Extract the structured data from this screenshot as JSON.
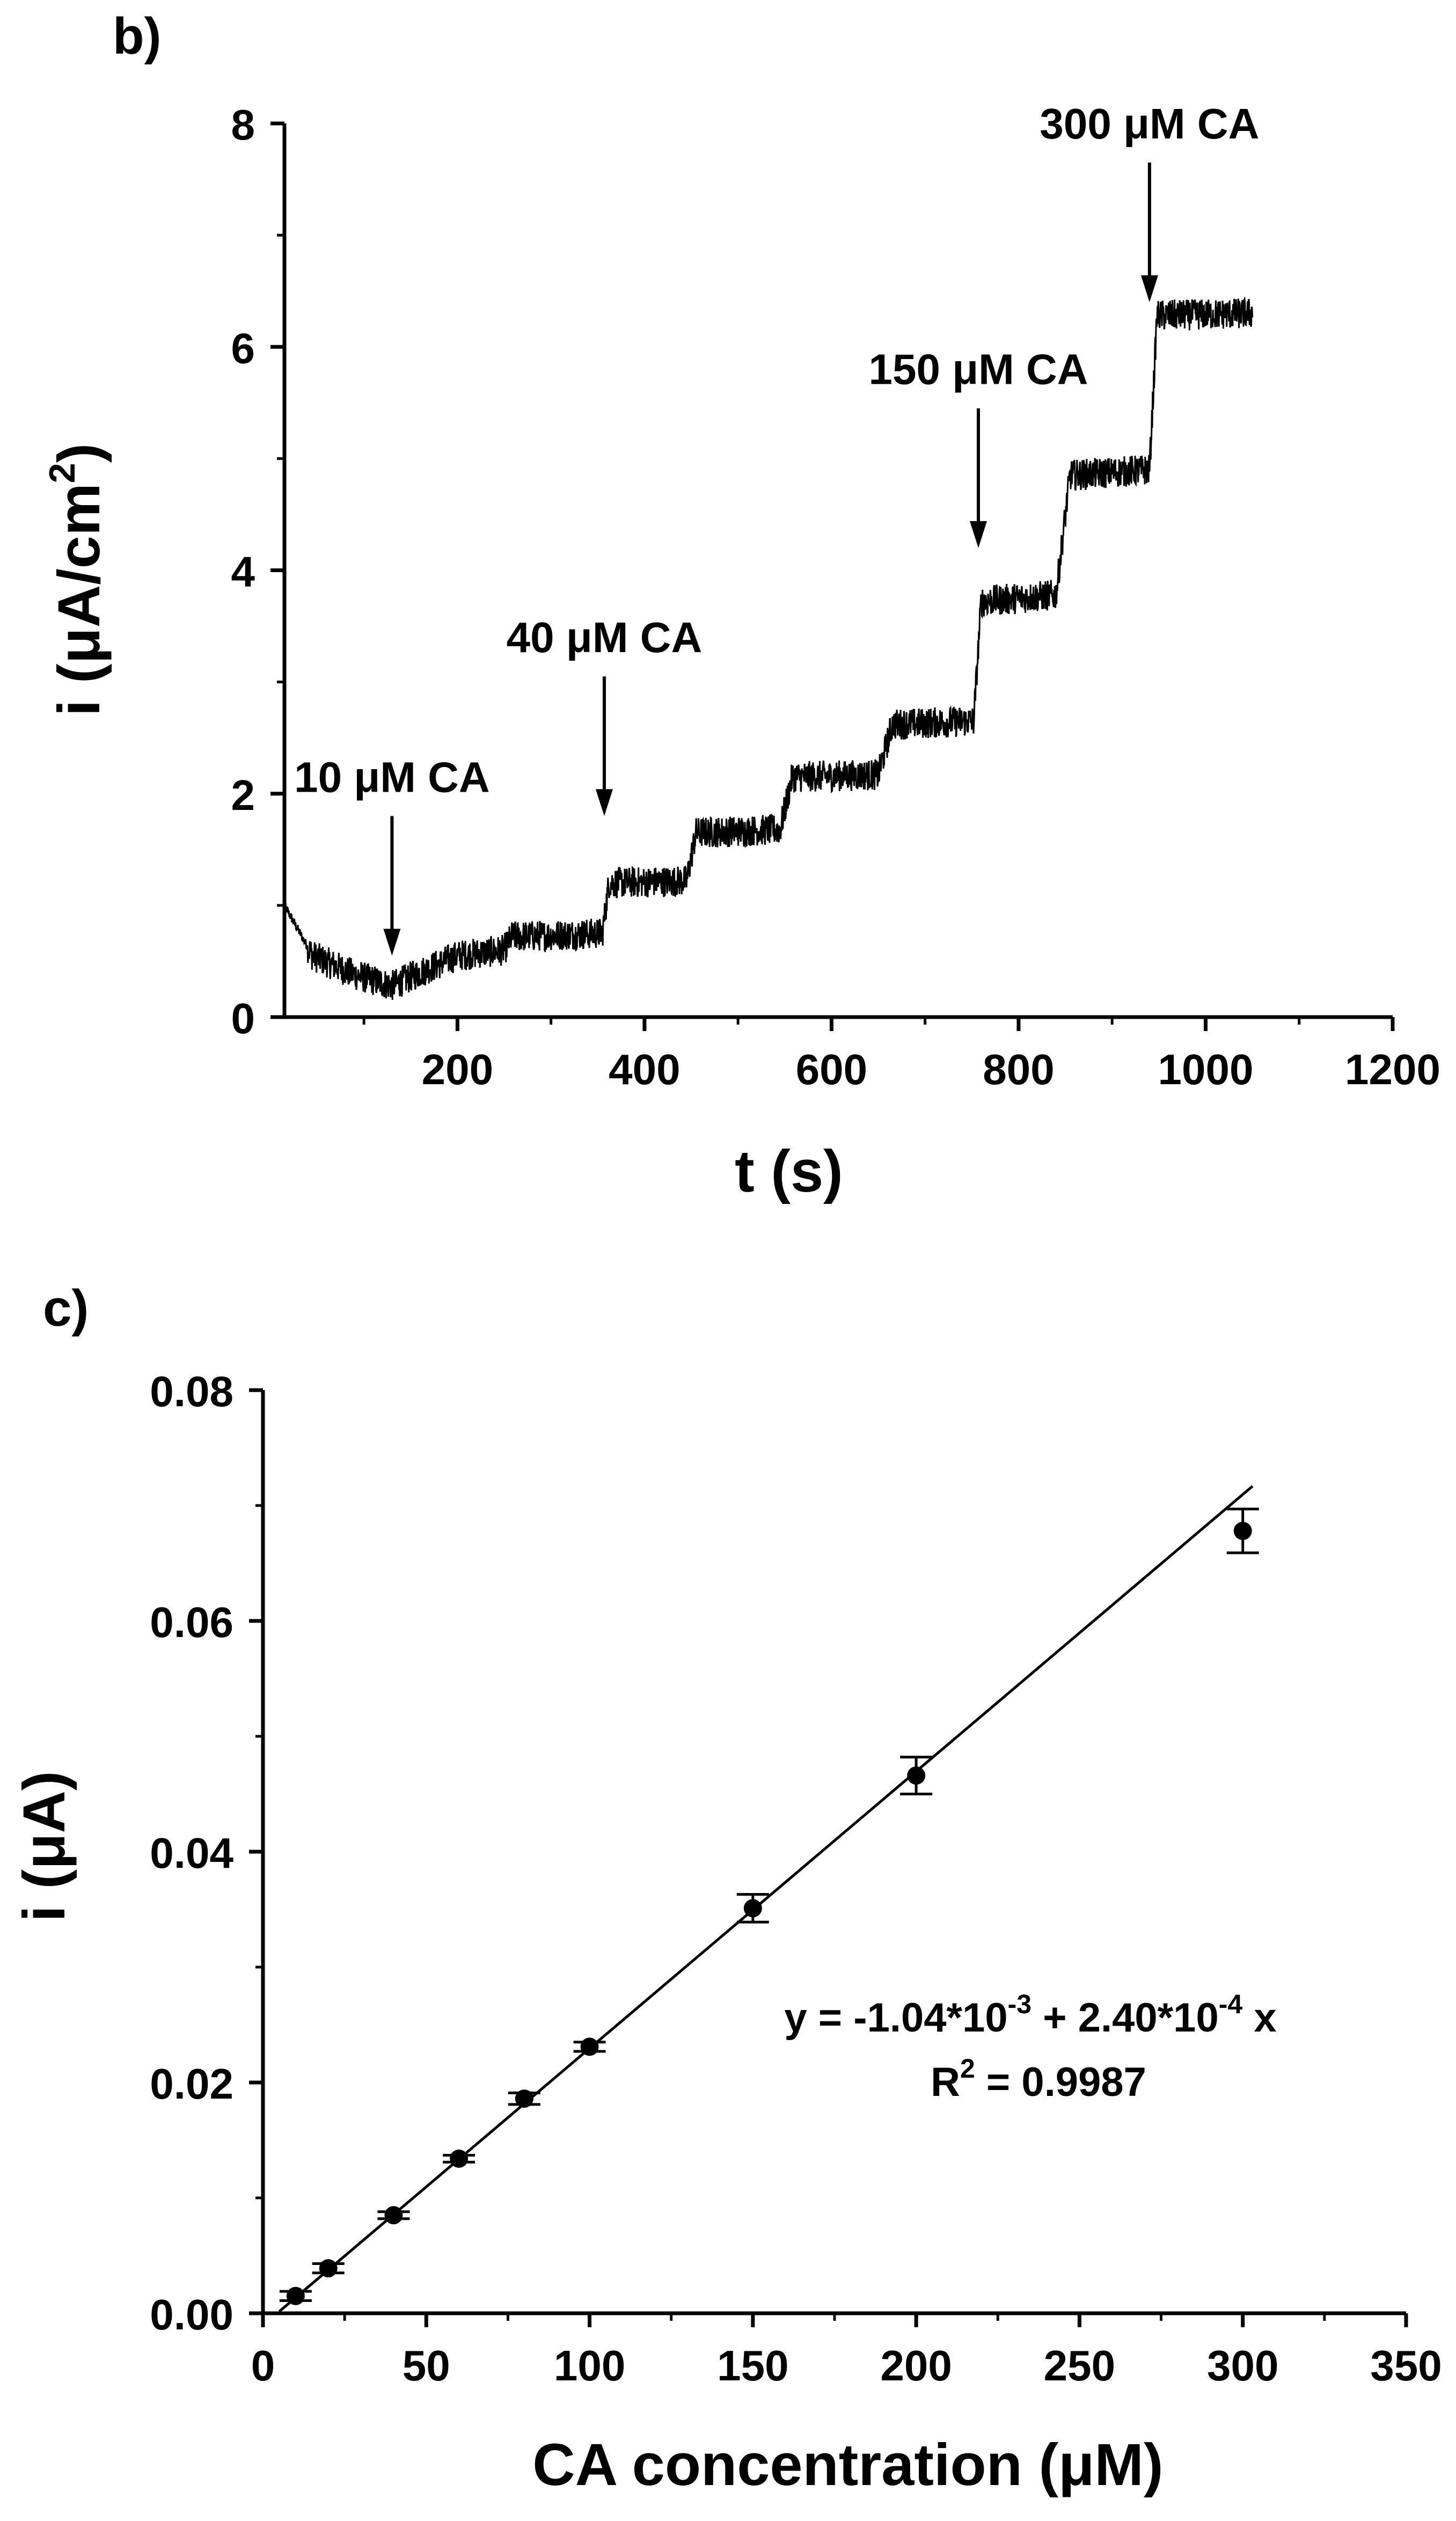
{
  "chart_data": [
    {
      "panel_label": "b)",
      "type": "line",
      "xlabel": "t (s)",
      "ylabel_main": "i (μA/cm",
      "ylabel_sup": "2",
      "ylabel_end": ")",
      "xlim": [
        15,
        1200
      ],
      "ylim": [
        0,
        8
      ],
      "xticks": [
        200,
        400,
        600,
        800,
        1000,
        1200
      ],
      "yticks": [
        0,
        2,
        4,
        6,
        8
      ],
      "x_start": 15,
      "x_end": 1050,
      "noise_amplitude": 0.14,
      "steps": [
        {
          "t": 15,
          "i": 1.0
        },
        {
          "t": 45,
          "i": 0.55
        },
        {
          "t": 90,
          "i": 0.38
        },
        {
          "t": 130,
          "i": 0.28
        },
        {
          "t": 160,
          "i": 0.4
        },
        {
          "t": 200,
          "i": 0.55
        },
        {
          "t": 250,
          "i": 0.6
        },
        {
          "t": 258,
          "i": 0.72
        },
        {
          "t": 355,
          "i": 0.75
        },
        {
          "t": 362,
          "i": 1.2
        },
        {
          "t": 445,
          "i": 1.22
        },
        {
          "t": 455,
          "i": 1.65
        },
        {
          "t": 545,
          "i": 1.68
        },
        {
          "t": 558,
          "i": 2.15
        },
        {
          "t": 650,
          "i": 2.17
        },
        {
          "t": 665,
          "i": 2.62
        },
        {
          "t": 752,
          "i": 2.65
        },
        {
          "t": 760,
          "i": 3.72
        },
        {
          "t": 840,
          "i": 3.78
        },
        {
          "t": 855,
          "i": 4.85
        },
        {
          "t": 940,
          "i": 4.9
        },
        {
          "t": 948,
          "i": 6.28
        },
        {
          "t": 1050,
          "i": 6.3
        }
      ],
      "annotations": [
        {
          "label": "10 μM CA",
          "x": 130,
          "y_tip": 0.55,
          "y_tail": 1.8
        },
        {
          "label": "40 μM CA",
          "x": 357,
          "y_tip": 1.8,
          "y_tail": 3.05
        },
        {
          "label": "150 μM CA",
          "x": 757,
          "y_tip": 4.2,
          "y_tail": 5.45
        },
        {
          "label": "300 μM CA",
          "x": 940,
          "y_tip": 6.4,
          "y_tail": 7.65
        }
      ]
    },
    {
      "panel_label": "c)",
      "type": "scatter",
      "xlabel": "CA concentration (μM)",
      "ylabel": "i (μA)",
      "xlim": [
        0,
        350
      ],
      "ylim": [
        0,
        0.08
      ],
      "xticks": [
        0,
        50,
        100,
        150,
        200,
        250,
        300,
        350
      ],
      "yticks": [
        0.0,
        0.02,
        0.04,
        0.06,
        0.08
      ],
      "ytick_labels": [
        "0.00",
        "0.02",
        "0.04",
        "0.06",
        "0.08"
      ],
      "x": [
        10,
        20,
        40,
        60,
        80,
        100,
        150,
        200,
        300
      ],
      "y": [
        0.0015,
        0.0039,
        0.0085,
        0.0134,
        0.0186,
        0.0231,
        0.0351,
        0.0466,
        0.0678
      ],
      "yerr": [
        0.0004,
        0.0004,
        0.0003,
        0.0003,
        0.0005,
        0.0004,
        0.0012,
        0.0016,
        0.0019
      ],
      "fit": {
        "intercept": -0.00104,
        "slope": 0.00024,
        "x_range": [
          5,
          303
        ]
      },
      "equation": {
        "part1": "y = -1.04*10",
        "sup1": "-3",
        "part2": " + 2.40*10",
        "sup2": "-4",
        "part3": " x"
      },
      "r2": {
        "part1": "R",
        "sup": "2",
        "part2": " = 0.9987"
      }
    }
  ]
}
